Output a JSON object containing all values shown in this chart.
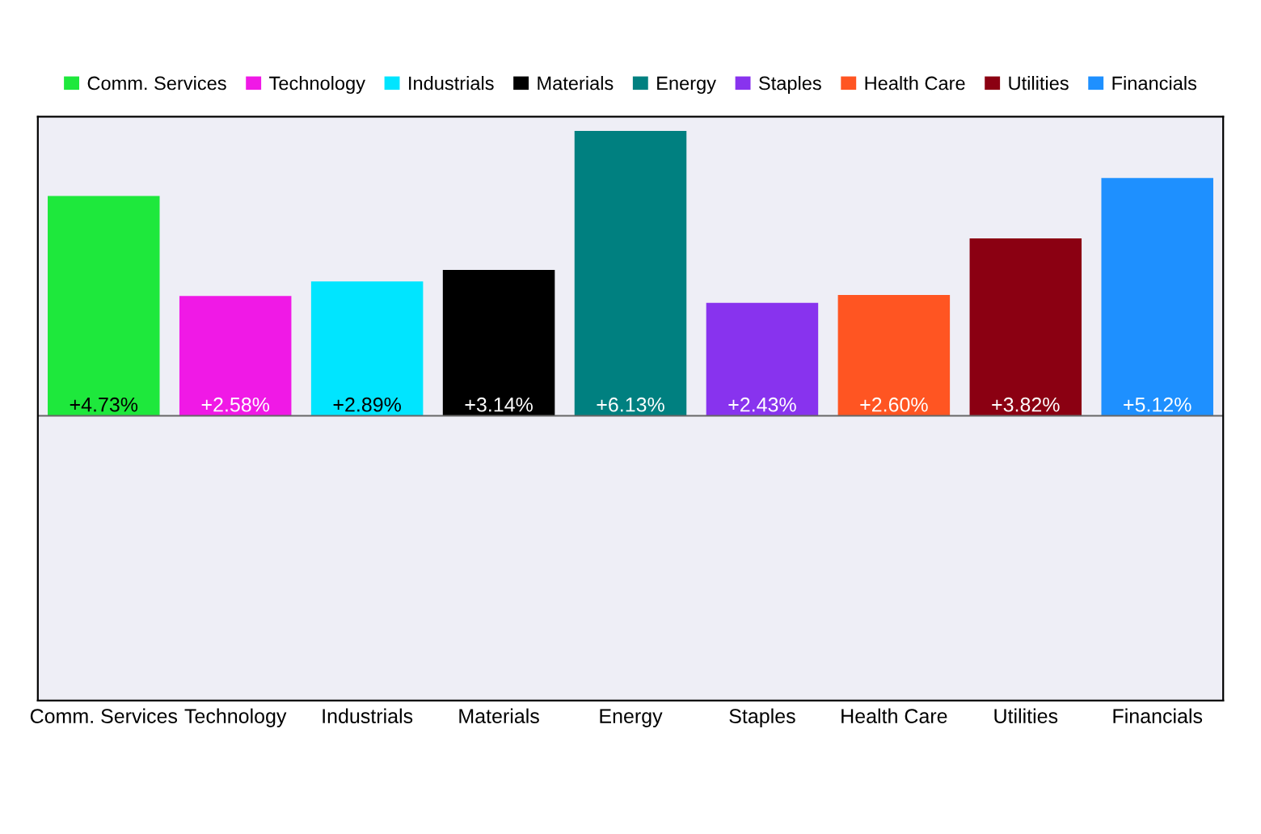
{
  "chart_data": {
    "type": "bar",
    "categories": [
      "Comm. Services",
      "Technology",
      "Industrials",
      "Materials",
      "Energy",
      "Staples",
      "Health Care",
      "Utilities",
      "Financials"
    ],
    "series": [
      {
        "name": "Comm. Services",
        "color": "#1ee83c",
        "values": [
          4.73,
          null,
          null,
          null,
          null,
          null,
          null,
          null,
          null
        ],
        "value_labels": [
          "+4.73%",
          null,
          null,
          null,
          null,
          null,
          null,
          null,
          null
        ]
      },
      {
        "name": "Technology",
        "color": "#f019e6",
        "values": [
          null,
          2.58,
          null,
          null,
          null,
          null,
          null,
          null,
          null
        ],
        "value_labels": [
          null,
          "+2.58%",
          null,
          null,
          null,
          null,
          null,
          null,
          null
        ]
      },
      {
        "name": "Industrials",
        "color": "#00e5ff",
        "values": [
          null,
          null,
          2.89,
          null,
          null,
          null,
          null,
          null,
          null
        ],
        "value_labels": [
          null,
          null,
          "+2.89%",
          null,
          null,
          null,
          null,
          null,
          null
        ]
      },
      {
        "name": "Materials",
        "color": "#000000",
        "values": [
          null,
          null,
          null,
          3.14,
          null,
          null,
          null,
          null,
          null
        ],
        "value_labels": [
          null,
          null,
          null,
          "+3.14%",
          null,
          null,
          null,
          null,
          null
        ]
      },
      {
        "name": "Energy",
        "color": "#008080",
        "values": [
          null,
          null,
          null,
          null,
          6.13,
          null,
          null,
          null,
          null
        ],
        "value_labels": [
          null,
          null,
          null,
          null,
          "+6.13%",
          null,
          null,
          null,
          null
        ]
      },
      {
        "name": "Staples",
        "color": "#8833ee",
        "values": [
          null,
          null,
          null,
          null,
          null,
          2.43,
          null,
          null,
          null
        ],
        "value_labels": [
          null,
          null,
          null,
          null,
          null,
          "+2.43%",
          null,
          null,
          null
        ]
      },
      {
        "name": "Health Care",
        "color": "#ff5522",
        "values": [
          null,
          null,
          null,
          null,
          null,
          null,
          2.6,
          null,
          null
        ],
        "value_labels": [
          null,
          null,
          null,
          null,
          null,
          null,
          "+2.60%",
          null,
          null
        ]
      },
      {
        "name": "Utilities",
        "color": "#8b0012",
        "values": [
          null,
          null,
          null,
          null,
          null,
          null,
          null,
          3.82,
          null
        ],
        "value_labels": [
          null,
          null,
          null,
          null,
          null,
          null,
          null,
          "+3.82%",
          null
        ]
      },
      {
        "name": "Financials",
        "color": "#1e90ff",
        "values": [
          null,
          null,
          null,
          null,
          null,
          null,
          null,
          null,
          5.12
        ],
        "value_labels": [
          null,
          null,
          null,
          null,
          null,
          null,
          null,
          null,
          "+5.12%"
        ]
      }
    ],
    "legend": "top"
  }
}
